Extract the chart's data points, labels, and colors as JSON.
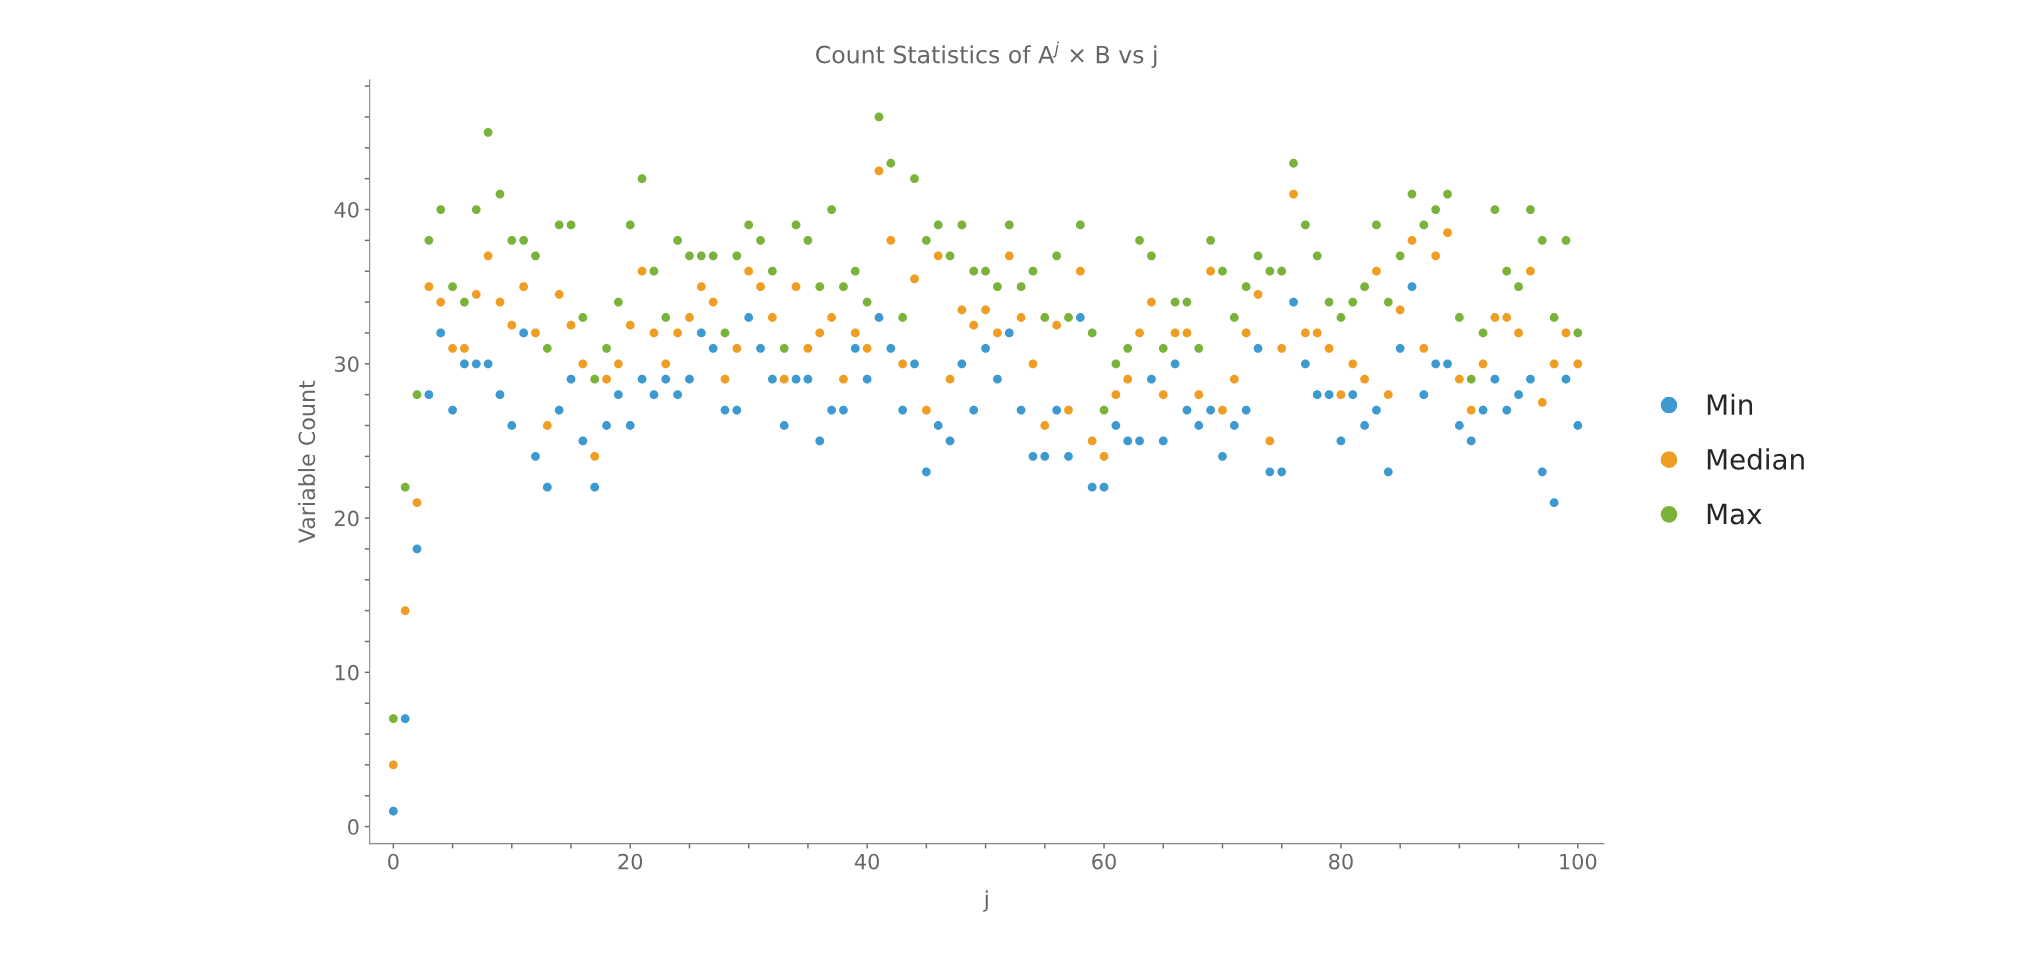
{
  "chart_data": {
    "type": "scatter",
    "title": "Count Statistics of A$^{j}$ × B vs j",
    "xlabel": "j",
    "ylabel": "Variable Count",
    "x": [
      0,
      1,
      2,
      3,
      4,
      5,
      6,
      7,
      8,
      9,
      10,
      11,
      12,
      13,
      14,
      15,
      16,
      17,
      18,
      19,
      20,
      21,
      22,
      23,
      24,
      25,
      26,
      27,
      28,
      29,
      30,
      31,
      32,
      33,
      34,
      35,
      36,
      37,
      38,
      39,
      40,
      41,
      42,
      43,
      44,
      45,
      46,
      47,
      48,
      49,
      50,
      51,
      52,
      53,
      54,
      55,
      56,
      57,
      58,
      59,
      60,
      61,
      62,
      63,
      64,
      65,
      66,
      67,
      68,
      69,
      70,
      71,
      72,
      73,
      74,
      75,
      76,
      77,
      78,
      79,
      80,
      81,
      82,
      83,
      84,
      85,
      86,
      87,
      88,
      89,
      90,
      91,
      92,
      93,
      94,
      95,
      96,
      97,
      98,
      99,
      100
    ],
    "series": [
      {
        "name": "Min",
        "color": "#3d9ad1",
        "values": [
          1,
          7,
          18,
          28,
          32,
          27,
          30,
          30,
          30,
          28,
          26,
          32,
          24,
          22,
          27,
          29,
          25,
          22,
          26,
          28,
          26,
          29,
          28,
          29,
          28,
          29,
          32,
          31,
          27,
          27,
          33,
          31,
          29,
          26,
          29,
          29,
          25,
          27,
          27,
          31,
          29,
          33,
          31,
          27,
          30,
          23,
          26,
          25,
          30,
          27,
          31,
          29,
          32,
          27,
          24,
          24,
          27,
          24,
          33,
          22,
          22,
          26,
          25,
          25,
          29,
          25,
          30,
          27,
          26,
          27,
          24,
          26,
          27,
          31,
          23,
          23,
          34,
          30,
          28,
          28,
          25,
          28,
          26,
          27,
          23,
          31,
          35,
          28,
          30,
          30,
          26,
          25,
          27,
          29,
          27,
          28,
          29,
          23,
          21,
          29,
          26
        ]
      },
      {
        "name": "Median",
        "color": "#f09d24",
        "values": [
          4,
          14,
          21,
          35,
          34,
          31,
          31,
          34.5,
          37,
          34,
          32.5,
          35,
          32,
          26,
          34.5,
          32.5,
          30,
          24,
          29,
          30,
          32.5,
          36,
          32,
          30,
          32,
          33,
          35,
          34,
          29,
          31,
          36,
          35,
          33,
          29,
          35,
          31,
          32,
          33,
          29,
          32,
          31,
          42.5,
          38,
          30,
          35.5,
          27,
          37,
          29,
          33.5,
          32.5,
          33.5,
          32,
          37,
          33,
          30,
          26,
          32.5,
          27,
          36,
          25,
          24,
          28,
          29,
          32,
          34,
          28,
          32,
          32,
          28,
          36,
          27,
          29,
          32,
          34.5,
          25,
          31,
          41,
          32,
          32,
          31,
          28,
          30,
          29,
          36,
          28,
          33.5,
          38,
          31,
          37,
          38.5,
          29,
          27,
          30,
          33,
          33,
          32,
          36,
          27.5,
          30,
          32,
          30
        ]
      },
      {
        "name": "Max",
        "color": "#79b33a",
        "values": [
          7,
          22,
          28,
          38,
          40,
          35,
          34,
          40,
          45,
          41,
          38,
          38,
          37,
          31,
          39,
          39,
          33,
          29,
          31,
          34,
          39,
          42,
          36,
          33,
          38,
          37,
          37,
          37,
          32,
          37,
          39,
          38,
          36,
          31,
          39,
          38,
          35,
          40,
          35,
          36,
          34,
          46,
          43,
          33,
          42,
          38,
          39,
          37,
          39,
          36,
          36,
          35,
          39,
          35,
          36,
          33,
          37,
          33,
          39,
          32,
          27,
          30,
          31,
          38,
          37,
          31,
          34,
          34,
          31,
          38,
          36,
          33,
          35,
          37,
          36,
          36,
          43,
          39,
          37,
          34,
          33,
          34,
          35,
          39,
          34,
          37,
          41,
          39,
          40,
          41,
          33,
          29,
          32,
          40,
          36,
          35,
          40,
          38,
          33,
          38,
          32
        ]
      }
    ],
    "xlim": [
      -2,
      102.2
    ],
    "ylim": [
      -1.1,
      48.4
    ],
    "xticks": [
      0,
      {
        "value": 5,
        "label": null
      },
      {
        "value": 10,
        "label": null
      },
      {
        "value": 15,
        "label": null
      },
      20,
      {
        "value": 25,
        "label": null
      },
      {
        "value": 30,
        "label": null
      },
      {
        "value": 35,
        "label": null
      },
      40,
      {
        "value": 45,
        "label": null
      },
      {
        "value": 50,
        "label": null
      },
      {
        "value": 55,
        "label": null
      },
      60,
      {
        "value": 65,
        "label": null
      },
      {
        "value": 70,
        "label": null
      },
      {
        "value": 75,
        "label": null
      },
      80,
      {
        "value": 85,
        "label": null
      },
      {
        "value": 90,
        "label": null
      },
      {
        "value": 95,
        "label": null
      },
      100
    ],
    "yticks": [
      0,
      {
        "value": 2,
        "label": null
      },
      {
        "value": 4,
        "label": null
      },
      {
        "value": 6,
        "label": null
      },
      {
        "value": 8,
        "label": null
      },
      10,
      {
        "value": 12,
        "label": null
      },
      {
        "value": 14,
        "label": null
      },
      {
        "value": 16,
        "label": null
      },
      {
        "value": 18,
        "label": null
      },
      20,
      {
        "value": 22,
        "label": null
      },
      {
        "value": 24,
        "label": null
      },
      {
        "value": 26,
        "label": null
      },
      {
        "value": 28,
        "label": null
      },
      30,
      {
        "value": 32,
        "label": null
      },
      {
        "value": 34,
        "label": null
      },
      {
        "value": 36,
        "label": null
      },
      {
        "value": 38,
        "label": null
      },
      40,
      {
        "value": 42,
        "label": null
      },
      {
        "value": 44,
        "label": null
      },
      {
        "value": 46,
        "label": null
      },
      {
        "value": 48,
        "label": null
      }
    ],
    "marker": "circle",
    "grid": false,
    "legend": "right"
  }
}
